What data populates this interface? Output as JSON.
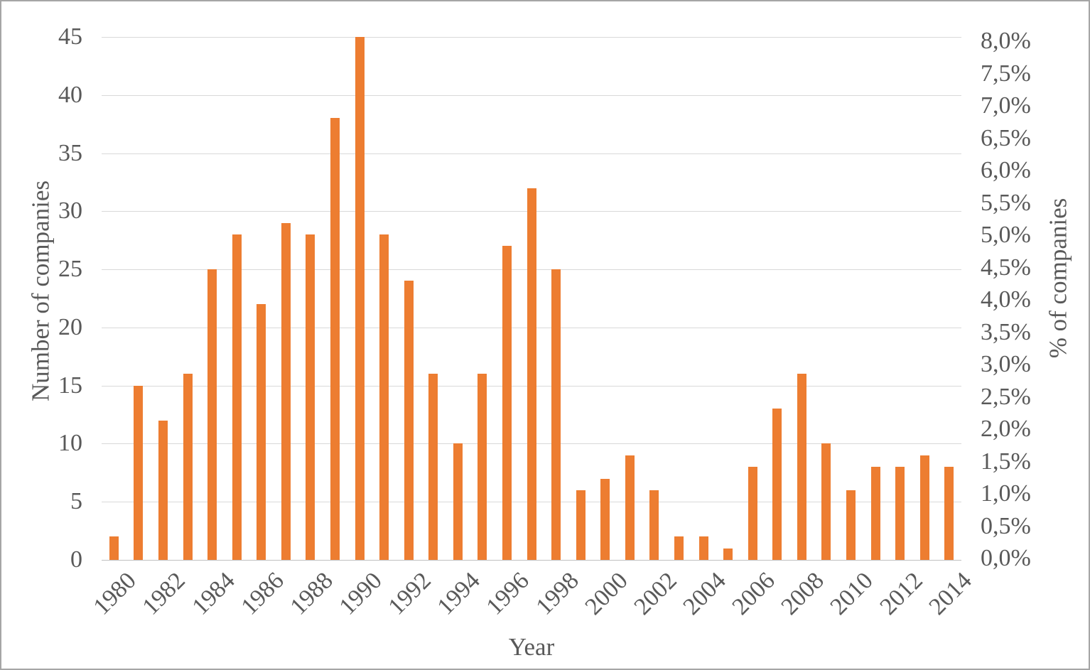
{
  "chart_data": {
    "type": "bar",
    "title": "",
    "xlabel": "Year",
    "ylabel_left": "Number of companies",
    "ylabel_right": "% of companies",
    "categories": [
      "1980",
      "1981",
      "1982",
      "1983",
      "1984",
      "1985",
      "1986",
      "1987",
      "1988",
      "1989",
      "1990",
      "1991",
      "1992",
      "1993",
      "1994",
      "1995",
      "1996",
      "1997",
      "1998",
      "1999",
      "2000",
      "2001",
      "2002",
      "2003",
      "2004",
      "2005",
      "2006",
      "2007",
      "2008",
      "2009",
      "2010",
      "2011",
      "2012",
      "2013",
      "2014"
    ],
    "values": [
      2,
      15,
      12,
      16,
      25,
      28,
      22,
      29,
      28,
      38,
      45,
      28,
      24,
      16,
      10,
      16,
      27,
      32,
      25,
      6,
      7,
      9,
      6,
      2,
      2,
      1,
      8,
      13,
      16,
      10,
      6,
      8,
      8,
      9,
      8
    ],
    "ylim_left": [
      0,
      45
    ],
    "ylim_right_percent": [
      0.0,
      8.0
    ],
    "grid": "horizontal",
    "legend": "none",
    "left_tick_labels": [
      "0",
      "5",
      "10",
      "15",
      "20",
      "25",
      "30",
      "35",
      "40",
      "45"
    ],
    "left_tick_values": [
      0,
      5,
      10,
      15,
      20,
      25,
      30,
      35,
      40,
      45
    ],
    "right_tick_labels_bottom_to_top": [
      "0,0%",
      "0,5%",
      "1,0%",
      "1,5%",
      "2,0%",
      "2,5%",
      "3,0%",
      "3,5%",
      "4,0%",
      "4,5%",
      "5,0%",
      "5,5%",
      "6,0%",
      "6,5%",
      "7,0%",
      "7,5%",
      "8,0%"
    ],
    "x_tick_labels": [
      "1980",
      "1982",
      "1984",
      "1986",
      "1988",
      "1990",
      "1992",
      "1994",
      "1996",
      "1998",
      "2000",
      "2002",
      "2004",
      "2006",
      "2008",
      "2010",
      "2012",
      "2014"
    ],
    "colors": {
      "bar": "#ED7D31",
      "gridline": "#D9D9D9",
      "axis_line": "#C0C0C0",
      "text": "#595959",
      "frame_border": "#A6A6A6",
      "background": "#FFFFFF"
    }
  }
}
